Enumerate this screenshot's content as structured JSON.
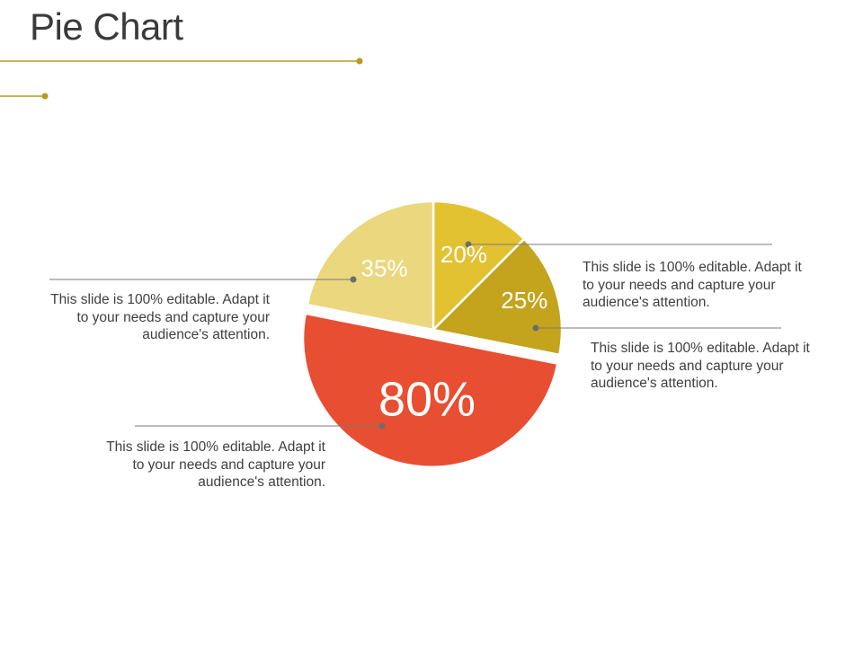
{
  "title": "Pie Chart",
  "colors": {
    "accent": "#b89a1e",
    "text": "#404040",
    "leader": "#7a7a7a"
  },
  "chart_data": {
    "type": "pie",
    "title": "Pie Chart",
    "slices": [
      {
        "label": "20%",
        "value": 20,
        "color": "#e3c232",
        "exploded": false
      },
      {
        "label": "25%",
        "value": 25,
        "color": "#c4a31d",
        "exploded": false
      },
      {
        "label": "80%",
        "value": 80,
        "color": "#e84e31",
        "exploded": true
      },
      {
        "label": "35%",
        "value": 35,
        "color": "#ebd77e",
        "exploded": false
      }
    ]
  },
  "callouts": [
    {
      "text": "This slide is 100% editable. Adapt it to your needs and capture your audience's attention."
    },
    {
      "text": "This slide is 100% editable. Adapt it to your needs and capture your audience's attention."
    },
    {
      "text": "This slide is 100% editable. Adapt it to your needs and capture your audience's attention."
    },
    {
      "text": "This slide is 100% editable. Adapt it to your needs and capture your audience's attention."
    }
  ]
}
